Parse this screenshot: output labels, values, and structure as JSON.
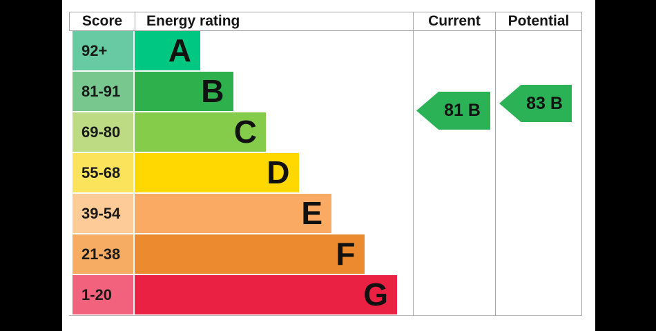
{
  "window": {
    "background": "#000000",
    "panel_background": "#ffffff",
    "grid_color": "#a6a6a6"
  },
  "header": {
    "score": "Score",
    "energy_rating": "Energy rating",
    "current": "Current",
    "potential": "Potential"
  },
  "bands": [
    {
      "score": "92+",
      "letter": "A",
      "color": "#00c781",
      "tint": "#68caa2"
    },
    {
      "score": "81-91",
      "letter": "B",
      "color": "#2eb04c",
      "tint": "#77c78f"
    },
    {
      "score": "69-80",
      "letter": "C",
      "color": "#84cc4a",
      "tint": "#bcdb82"
    },
    {
      "score": "55-68",
      "letter": "D",
      "color": "#fed800",
      "tint": "#fbe35c"
    },
    {
      "score": "39-54",
      "letter": "E",
      "color": "#fbaa63",
      "tint": "#fdcb97"
    },
    {
      "score": "21-38",
      "letter": "F",
      "color": "#ec8a2f",
      "tint": "#f6ac62"
    },
    {
      "score": "1-20",
      "letter": "G",
      "color": "#eb2144",
      "tint": "#f3627c"
    }
  ],
  "markers": {
    "current": {
      "label": "81 B",
      "score": 81,
      "rating": "B",
      "color": "#2bb257"
    },
    "potential": {
      "label": "83 B",
      "score": 83,
      "rating": "B",
      "color": "#2bb257"
    }
  },
  "chart_data": {
    "type": "bar",
    "title": "Energy rating",
    "orientation": "horizontal",
    "categories": [
      "A",
      "B",
      "C",
      "D",
      "E",
      "F",
      "G"
    ],
    "score_ranges": [
      "92+",
      "81-91",
      "69-80",
      "55-68",
      "39-54",
      "21-38",
      "1-20"
    ],
    "bar_relative_lengths": [
      1,
      1.5,
      2,
      2.5,
      3,
      3.5,
      4
    ],
    "bar_colors": [
      "#00c781",
      "#2eb04c",
      "#84cc4a",
      "#fed800",
      "#fbaa63",
      "#ec8a2f",
      "#eb2144"
    ],
    "current": {
      "score": 81,
      "rating": "B"
    },
    "potential": {
      "score": 83,
      "rating": "B"
    },
    "legend_position": "none",
    "grid": false
  }
}
